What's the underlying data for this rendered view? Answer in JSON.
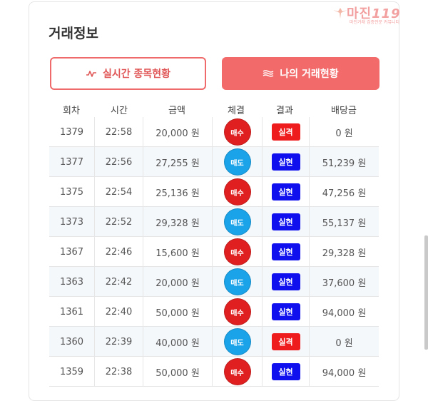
{
  "panel": {
    "title": "거래정보"
  },
  "buttons": {
    "live_label": "실시간 종목현황",
    "mine_label": "나의 거래현황"
  },
  "watermark": {
    "text": "마진",
    "text_accent": "119",
    "sub": "마진거래 검증전문 커뮤니티"
  },
  "table": {
    "headers": [
      "회차",
      "시간",
      "금액",
      "체결",
      "결과",
      "배당금"
    ],
    "rows": [
      {
        "round": "1379",
        "time": "22:58",
        "amount": "20,000 원",
        "side": "매수",
        "result": "실격",
        "payout": "0 원"
      },
      {
        "round": "1377",
        "time": "22:56",
        "amount": "27,255 원",
        "side": "매도",
        "result": "실현",
        "payout": "51,239 원"
      },
      {
        "round": "1375",
        "time": "22:54",
        "amount": "25,136 원",
        "side": "매수",
        "result": "실현",
        "payout": "47,256 원"
      },
      {
        "round": "1373",
        "time": "22:52",
        "amount": "29,328 원",
        "side": "매도",
        "result": "실현",
        "payout": "55,137 원"
      },
      {
        "round": "1367",
        "time": "22:46",
        "amount": "15,600 원",
        "side": "매수",
        "result": "실현",
        "payout": "29,328 원"
      },
      {
        "round": "1363",
        "time": "22:42",
        "amount": "20,000 원",
        "side": "매도",
        "result": "실현",
        "payout": "37,600 원"
      },
      {
        "round": "1361",
        "time": "22:40",
        "amount": "50,000 원",
        "side": "매수",
        "result": "실현",
        "payout": "94,000 원"
      },
      {
        "round": "1360",
        "time": "22:39",
        "amount": "40,000 원",
        "side": "매도",
        "result": "실격",
        "payout": "0 원"
      },
      {
        "round": "1359",
        "time": "22:38",
        "amount": "50,000 원",
        "side": "매수",
        "result": "실현",
        "payout": "94,000 원"
      }
    ]
  },
  "colors": {
    "accent": "#f26a6a",
    "buy": "#e02020",
    "sell": "#1aa3e8",
    "realized": "#1010ee",
    "failed": "#ee1c1c"
  }
}
